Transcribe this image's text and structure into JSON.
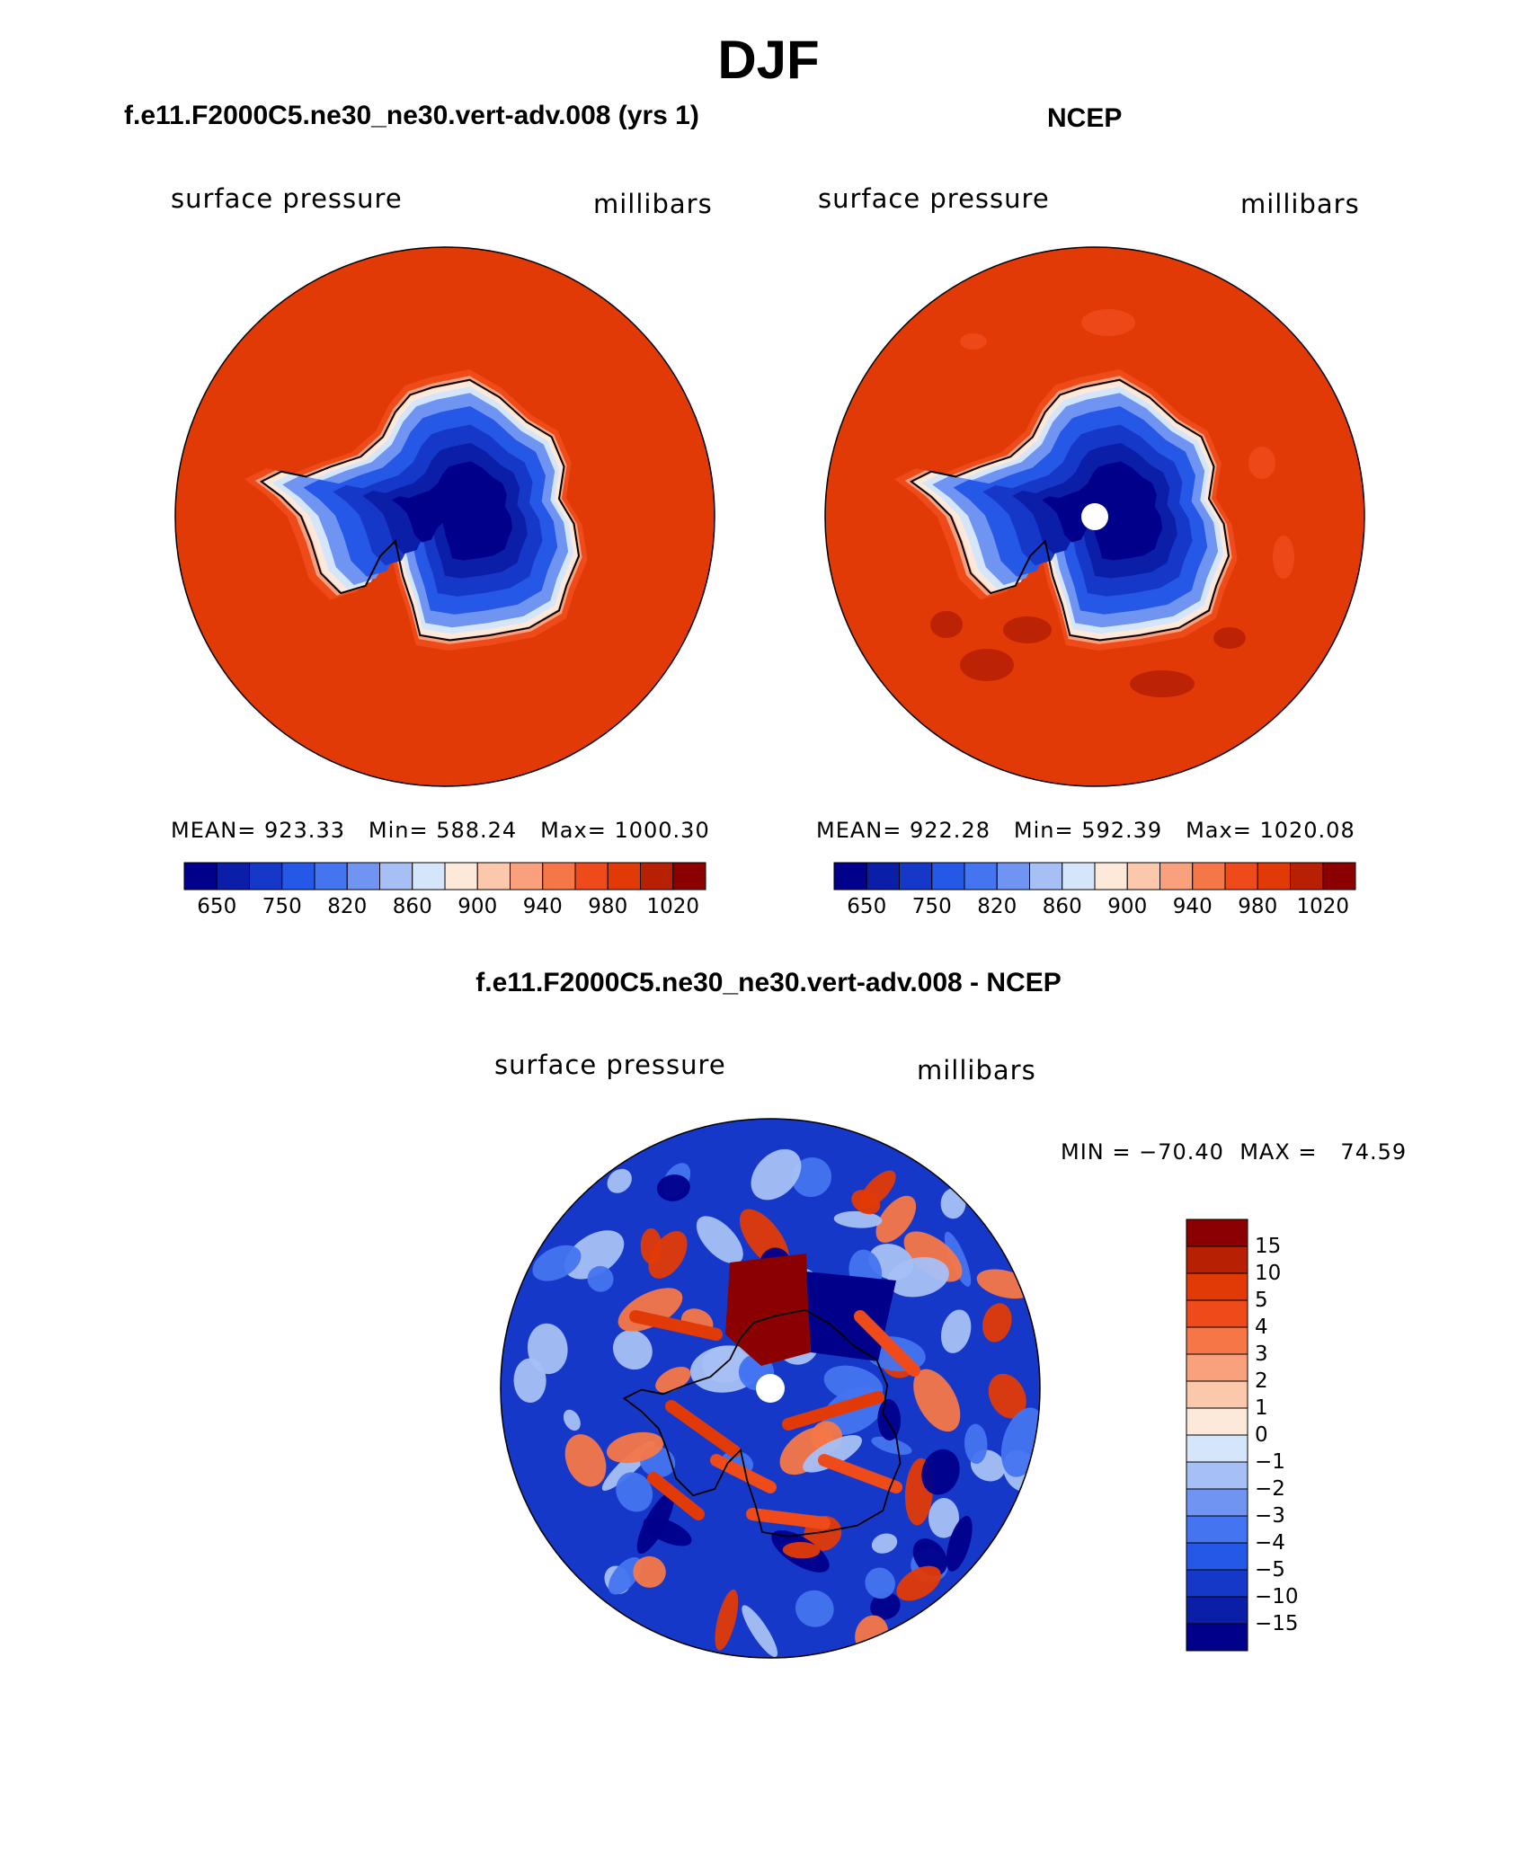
{
  "figure": {
    "title": "DJF",
    "colors": {
      "palette": [
        "#00008b",
        "#0a1ea8",
        "#1638c8",
        "#2558e6",
        "#4574f0",
        "#7094f2",
        "#a6c0f6",
        "#d6e6fa",
        "#fde9da",
        "#fbc8ac",
        "#f9a07c",
        "#f57748",
        "#ee4a1a",
        "#e23a06",
        "#b82004",
        "#8b0000"
      ],
      "zero_band": "#ffffff"
    }
  },
  "chart_data": [
    {
      "id": "model",
      "type": "heatmap",
      "projection": "south-polar-stereographic",
      "header": "f.e11.F2000C5.ne30_ne30.vert-adv.008 (yrs 1)",
      "left_label": "surface pressure",
      "right_label": "millibars",
      "stats": {
        "mean_label": "MEAN=",
        "mean": "923.33",
        "min_label": "Min=",
        "min": "588.24",
        "max_label": "Max=",
        "max": "1000.30"
      },
      "levels": [
        650,
        750,
        820,
        860,
        900,
        940,
        980,
        1020
      ],
      "level_breaks": [
        600,
        650,
        700,
        750,
        800,
        820,
        840,
        860,
        880,
        900,
        920,
        940,
        960,
        980,
        1000,
        1020
      ],
      "legend": "horizontal-below"
    },
    {
      "id": "obs",
      "type": "heatmap",
      "projection": "south-polar-stereographic",
      "header": "NCEP",
      "left_label": "surface pressure",
      "right_label": "millibars",
      "stats": {
        "mean_label": "MEAN=",
        "mean": "922.28",
        "min_label": "Min=",
        "min": "592.39",
        "max_label": "Max=",
        "max": "1020.08"
      },
      "levels": [
        650,
        750,
        820,
        860,
        900,
        940,
        980,
        1020
      ],
      "level_breaks": [
        600,
        650,
        700,
        750,
        800,
        820,
        840,
        860,
        880,
        900,
        920,
        940,
        960,
        980,
        1000,
        1020
      ],
      "legend": "horizontal-below"
    },
    {
      "id": "diff",
      "type": "heatmap",
      "projection": "south-polar-stereographic",
      "header": "f.e11.F2000C5.ne30_ne30.vert-adv.008 - NCEP",
      "left_label": "surface pressure",
      "right_label": "millibars",
      "minmax": {
        "min_label": "MIN =",
        "min": "−70.40",
        "max_label": "MAX =",
        "max": "74.59"
      },
      "levels": [
        "15",
        "10",
        "5",
        "4",
        "3",
        "2",
        "1",
        "0",
        "−1",
        "−2",
        "−3",
        "−4",
        "−5",
        "−10",
        "−15"
      ],
      "legend": "vertical-right"
    }
  ]
}
